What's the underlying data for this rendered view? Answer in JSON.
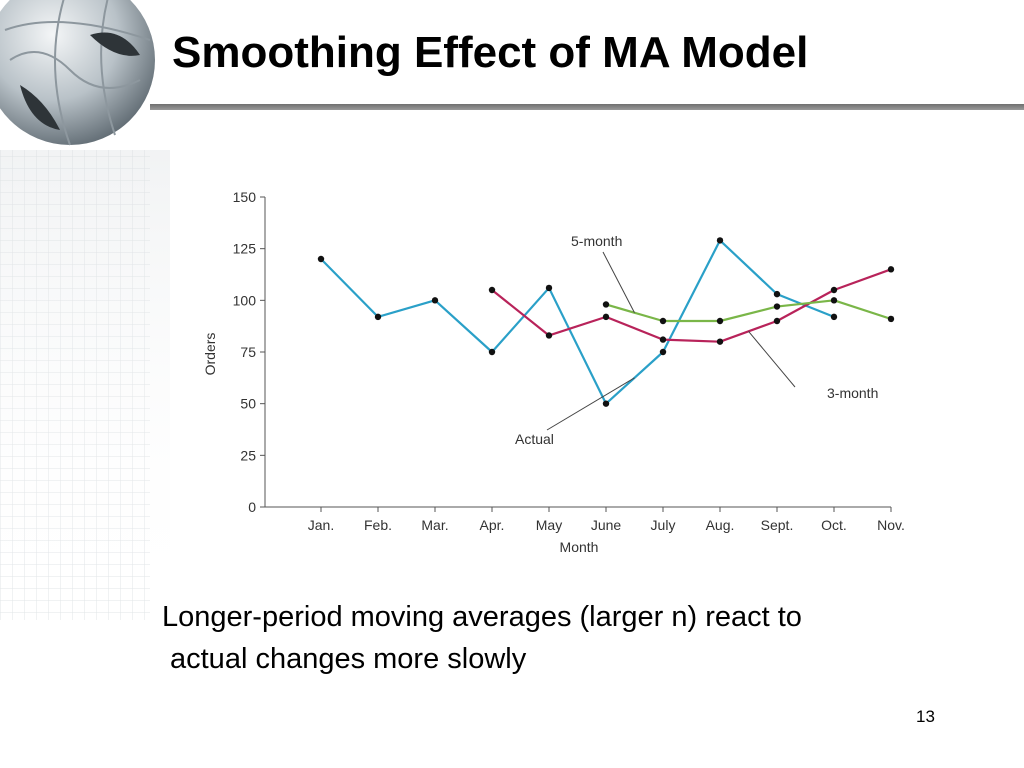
{
  "slide": {
    "title": "Smoothing Effect of MA Model",
    "caption_line1": "Longer-period moving averages (larger n) react to",
    "caption_line2": "actual changes more slowly",
    "page_number": "13"
  },
  "chart_data": {
    "type": "line",
    "categories": [
      "Jan.",
      "Feb.",
      "Mar.",
      "Apr.",
      "May",
      "June",
      "July",
      "Aug.",
      "Sept.",
      "Oct.",
      "Nov."
    ],
    "xlabel": "Month",
    "ylabel": "Orders",
    "ylim": [
      0,
      150
    ],
    "yticks": [
      0,
      25,
      50,
      75,
      100,
      125,
      150
    ],
    "grid": false,
    "series": [
      {
        "name": "Actual",
        "color": "#2aa0c8",
        "values": [
          120,
          92,
          100,
          75,
          106,
          50,
          75,
          129,
          103,
          92,
          null
        ]
      },
      {
        "name": "3-month",
        "color": "#b8235a",
        "values": [
          null,
          null,
          null,
          105,
          83,
          92,
          81,
          80,
          90,
          105,
          115
        ]
      },
      {
        "name": "5-month",
        "color": "#7ab648",
        "values": [
          null,
          null,
          null,
          null,
          null,
          98,
          90,
          90,
          97,
          100,
          91
        ]
      }
    ],
    "annotations": [
      {
        "text": "5-month",
        "series": "5-month"
      },
      {
        "text": "3-month",
        "series": "3-month"
      },
      {
        "text": "Actual",
        "series": "Actual"
      }
    ]
  }
}
